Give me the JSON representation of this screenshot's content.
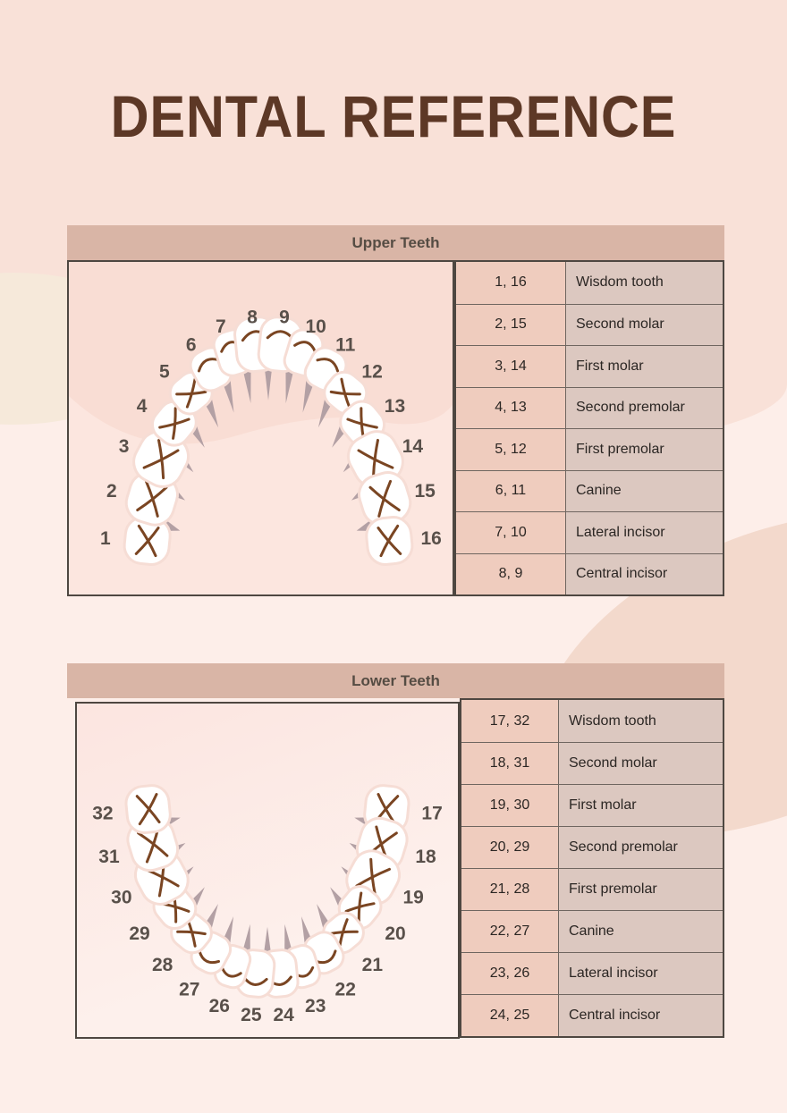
{
  "title": "DENTAL REFERENCE",
  "colors": {
    "page_bg": "#fdeee9",
    "top_band_bg": "#f9e1d8",
    "cream_blob": "#f6e9da",
    "ribbon": "#f3d9cc",
    "section_band": "#d9b5a6",
    "band_text": "#554c43",
    "title_text": "#5d3826",
    "num_cell_bg": "#efccbe",
    "name_cell_bg": "#dcc8c0",
    "cell_text": "#2b2623",
    "border_dark": "#4e4741",
    "grid_line": "#6f6660",
    "upper_diagram_bg": "#f9ddd4",
    "upper_diagram_wave": "#fce6df",
    "tooth_fill": "#ffffff",
    "tooth_halo": "#f6ddd5",
    "wedge": "#b3a0a4",
    "fissure": "#7a4522",
    "number_text": "#59504a"
  },
  "upper": {
    "header": "Upper Teeth",
    "teeth_numbers": [
      1,
      2,
      3,
      4,
      5,
      6,
      7,
      8,
      9,
      10,
      11,
      12,
      13,
      14,
      15,
      16
    ],
    "rows": [
      {
        "teeth": "1, 16",
        "name": "Wisdom tooth"
      },
      {
        "teeth": "2, 15",
        "name": "Second molar"
      },
      {
        "teeth": "3, 14",
        "name": "First molar"
      },
      {
        "teeth": "4, 13",
        "name": "Second premolar"
      },
      {
        "teeth": "5, 12",
        "name": "First premolar"
      },
      {
        "teeth": "6, 11",
        "name": "Canine"
      },
      {
        "teeth": "7, 10",
        "name": "Lateral incisor"
      },
      {
        "teeth": "8, 9",
        "name": "Central incisor"
      }
    ]
  },
  "lower": {
    "header": "Lower Teeth",
    "teeth_numbers": [
      17,
      18,
      19,
      20,
      21,
      22,
      23,
      24,
      25,
      26,
      27,
      28,
      29,
      30,
      31,
      32
    ],
    "rows": [
      {
        "teeth": "17, 32",
        "name": "Wisdom tooth"
      },
      {
        "teeth": "18, 31",
        "name": "Second molar"
      },
      {
        "teeth": "19, 30",
        "name": "First molar"
      },
      {
        "teeth": "20, 29",
        "name": "Second premolar"
      },
      {
        "teeth": "21, 28",
        "name": "First premolar"
      },
      {
        "teeth": "22, 27",
        "name": "Canine"
      },
      {
        "teeth": "23, 26",
        "name": "Lateral incisor"
      },
      {
        "teeth": "24, 25",
        "name": "Central incisor"
      }
    ]
  }
}
